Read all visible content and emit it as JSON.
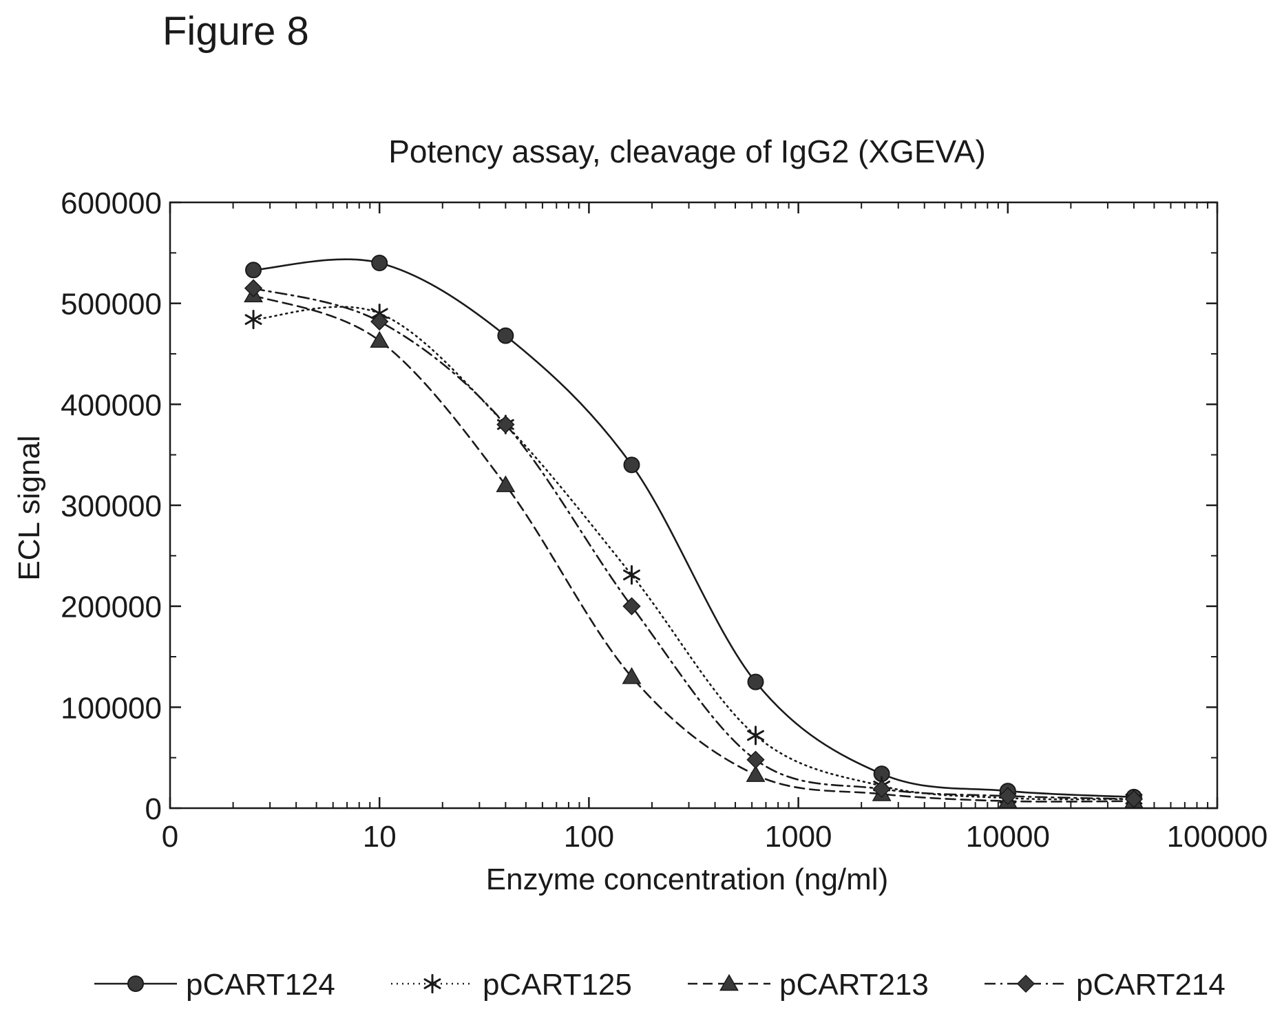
{
  "figure_label": "Figure 8",
  "chart_data": {
    "type": "line",
    "title": "Potency assay, cleavage of IgG2 (XGEVA)",
    "xlabel": "Enzyme concentration (ng/ml)",
    "ylabel": "ECL signal",
    "x_scale": "log",
    "xlim": [
      1,
      100000
    ],
    "ylim": [
      0,
      600000
    ],
    "x_tick_values": [
      1,
      10,
      100,
      1000,
      10000,
      100000
    ],
    "x_tick_labels": [
      "0",
      "10",
      "100",
      "1000",
      "10000",
      "100000"
    ],
    "y_ticks": [
      0,
      100000,
      200000,
      300000,
      400000,
      500000,
      600000
    ],
    "y_tick_labels": [
      "0",
      "100000",
      "200000",
      "300000",
      "400000",
      "500000",
      "600000"
    ],
    "grid": false,
    "legend_position": "bottom",
    "x": [
      2.5,
      10,
      40,
      160,
      625,
      2500,
      10000,
      40000
    ],
    "series": [
      {
        "name": "pCART124",
        "marker": "circle",
        "line_style": "solid",
        "values": [
          533000,
          540000,
          468000,
          340000,
          125000,
          34000,
          17000,
          11000
        ]
      },
      {
        "name": "pCART125",
        "marker": "asterisk",
        "line_style": "dotted",
        "values": [
          484000,
          490000,
          380000,
          231000,
          72000,
          22000,
          10000,
          9000
        ]
      },
      {
        "name": "pCART213",
        "marker": "triangle",
        "line_style": "dashed",
        "values": [
          508000,
          463000,
          320000,
          130000,
          33000,
          14000,
          7000,
          7000
        ]
      },
      {
        "name": "pCART214",
        "marker": "diamond",
        "line_style": "dashdot",
        "values": [
          515000,
          482000,
          380000,
          200000,
          48000,
          19000,
          12000,
          9000
        ]
      }
    ]
  }
}
